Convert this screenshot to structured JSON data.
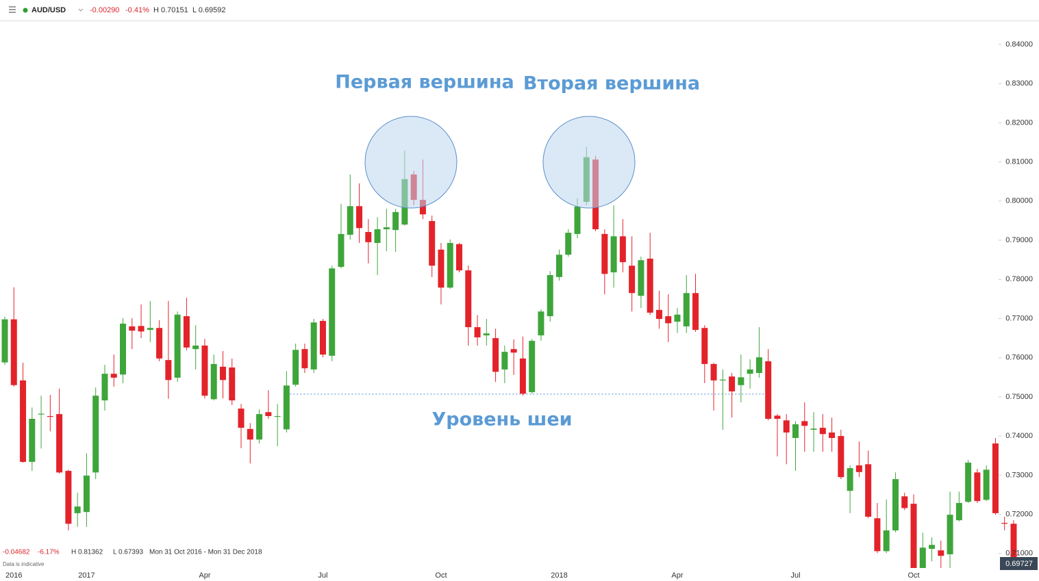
{
  "header": {
    "symbol": "AUD/USD",
    "change": "-0.00290",
    "change_pct": "-0.41%",
    "high": "H 0.70151",
    "low": "L 0.69592"
  },
  "chart_data": {
    "type": "candlestick",
    "categories": [
      null,
      "2016",
      null,
      null,
      null,
      null,
      null,
      null,
      null,
      "2017",
      null,
      null,
      null,
      null,
      null,
      null,
      null,
      null,
      null,
      null,
      null,
      null,
      "Apr",
      null,
      null,
      null,
      null,
      null,
      null,
      null,
      null,
      null,
      null,
      null,
      null,
      "Jul",
      null,
      null,
      null,
      null,
      null,
      null,
      null,
      null,
      null,
      null,
      null,
      null,
      "Oct",
      null,
      null,
      null,
      null,
      null,
      null,
      null,
      null,
      null,
      null,
      null,
      null,
      "2018",
      null,
      null,
      null,
      null,
      null,
      null,
      null,
      null,
      null,
      null,
      null,
      null,
      "Apr",
      null,
      null,
      null,
      null,
      null,
      null,
      null,
      null,
      null,
      null,
      null,
      null,
      "Jul",
      null,
      null,
      null,
      null,
      null,
      null,
      null,
      null,
      null,
      null,
      null,
      null,
      "Oct",
      null,
      null,
      null,
      null,
      null,
      null,
      null,
      null,
      null,
      null,
      null
    ],
    "open": [
      0.7588,
      0.7698,
      0.7542,
      0.7334,
      0.7455,
      0.7451,
      0.7456,
      0.7311,
      0.7203,
      0.7206,
      0.7307,
      0.7491,
      0.7559,
      0.7557,
      0.768,
      0.7681,
      0.7671,
      0.7676,
      0.7594,
      0.7549,
      0.7706,
      0.7622,
      0.7631,
      0.7494,
      0.7577,
      0.7575,
      0.747,
      0.7418,
      0.7391,
      0.7461,
      0.7449,
      0.7417,
      0.7531,
      0.7622,
      0.757,
      0.7694,
      0.7605,
      0.7832,
      0.7914,
      0.7987,
      0.7921,
      0.7893,
      0.7928,
      0.7926,
      0.794,
      0.8068,
      0.8003,
      0.7949,
      0.7876,
      0.7779,
      0.789,
      0.7823,
      0.7678,
      0.7657,
      0.765,
      0.757,
      0.7622,
      0.7598,
      0.7512,
      0.7657,
      0.7706,
      0.7806,
      0.7863,
      0.7916,
      0.7998,
      0.8106,
      0.7916,
      0.7818,
      0.791,
      0.7835,
      0.7758,
      0.7853,
      0.7722,
      0.7706,
      0.7692,
      0.768,
      0.7765,
      0.7676,
      0.7584,
      0.7542,
      0.7552,
      0.753,
      0.7559,
      0.7561,
      0.7591,
      0.7452,
      0.744,
      0.7395,
      0.7438,
      0.7416,
      0.7421,
      0.7409,
      0.74,
      0.726,
      0.7325,
      0.7328,
      0.719,
      0.7106,
      0.7159,
      0.7246,
      0.7227,
      0.7063,
      0.7112,
      0.7108,
      0.7098,
      0.7185,
      0.7232,
      0.7307,
      0.7237,
      0.7381,
      0.7178,
      0.7176
    ],
    "high": [
      0.7705,
      0.778,
      0.7587,
      0.7473,
      0.7503,
      0.7505,
      0.7521,
      0.7314,
      0.7255,
      0.7356,
      0.7524,
      0.7582,
      0.7608,
      0.7701,
      0.7701,
      0.7736,
      0.7745,
      0.7696,
      0.7745,
      0.7718,
      0.7753,
      0.7683,
      0.7648,
      0.7608,
      0.7617,
      0.7598,
      0.7482,
      0.7433,
      0.7468,
      0.7517,
      0.7482,
      0.7566,
      0.7636,
      0.7636,
      0.7699,
      0.7699,
      0.7835,
      0.7993,
      0.8068,
      0.8045,
      0.7954,
      0.7959,
      0.798,
      0.798,
      0.8129,
      0.8077,
      0.8106,
      0.7963,
      0.7893,
      0.7902,
      0.7893,
      0.7835,
      0.7709,
      0.7699,
      0.7674,
      0.7631,
      0.7647,
      0.7654,
      0.7648,
      0.7723,
      0.7821,
      0.7876,
      0.7928,
      0.8007,
      0.8138,
      0.8115,
      0.7928,
      0.7989,
      0.7954,
      0.791,
      0.7858,
      0.7919,
      0.7771,
      0.7762,
      0.7727,
      0.7811,
      0.7814,
      0.7683,
      0.7587,
      0.757,
      0.7561,
      0.7608,
      0.7596,
      0.7678,
      0.7622,
      0.7456,
      0.7456,
      0.7438,
      0.7486,
      0.7461,
      0.7456,
      0.7447,
      0.7416,
      0.7325,
      0.7386,
      0.7363,
      0.7229,
      0.7238,
      0.7307,
      0.7255,
      0.7251,
      0.7153,
      0.7141,
      0.7133,
      0.7258,
      0.7258,
      0.7339,
      0.7316,
      0.7325,
      0.7395,
      0.7194,
      0.7185
    ],
    "low": [
      0.7582,
      0.7526,
      0.7332,
      0.7311,
      0.7368,
      0.7412,
      0.7304,
      0.7159,
      0.7168,
      0.7168,
      0.729,
      0.7465,
      0.7526,
      0.7535,
      0.7622,
      0.765,
      0.764,
      0.7591,
      0.7495,
      0.7538,
      0.7619,
      0.757,
      0.7496,
      0.7491,
      0.7496,
      0.7479,
      0.7369,
      0.733,
      0.7381,
      0.7444,
      0.7374,
      0.7409,
      0.7526,
      0.7561,
      0.7561,
      0.7601,
      0.7591,
      0.7828,
      0.7902,
      0.7893,
      0.7841,
      0.7811,
      0.7872,
      0.787,
      0.7937,
      0.7989,
      0.7954,
      0.7806,
      0.7736,
      0.7776,
      0.7818,
      0.7631,
      0.7631,
      0.7631,
      0.7538,
      0.7535,
      0.7556,
      0.7503,
      0.7508,
      0.7643,
      0.7692,
      0.7797,
      0.7858,
      0.7905,
      0.7989,
      0.7923,
      0.7762,
      0.7779,
      0.7818,
      0.7718,
      0.7727,
      0.7709,
      0.7674,
      0.764,
      0.7663,
      0.7663,
      0.7666,
      0.7535,
      0.7465,
      0.7416,
      0.7447,
      0.7486,
      0.7521,
      0.7549,
      0.744,
      0.7348,
      0.7328,
      0.7311,
      0.736,
      0.736,
      0.736,
      0.736,
      0.729,
      0.7203,
      0.7295,
      0.719,
      0.7101,
      0.7101,
      0.7154,
      0.7211,
      0.7063,
      0.7063,
      0.708,
      0.7063,
      0.7063,
      0.7182,
      0.7229,
      0.7229,
      0.7234,
      0.7199,
      0.7159,
      0.7063
    ],
    "close": [
      0.7698,
      0.753,
      0.7334,
      0.7444,
      0.7457,
      0.7449,
      0.7307,
      0.7176,
      0.722,
      0.7299,
      0.7503,
      0.7559,
      0.7549,
      0.7687,
      0.7669,
      0.7667,
      0.7676,
      0.7598,
      0.7543,
      0.771,
      0.7626,
      0.7631,
      0.7503,
      0.7584,
      0.7543,
      0.7491,
      0.7421,
      0.7391,
      0.7456,
      0.7451,
      0.7451,
      0.7529,
      0.762,
      0.7573,
      0.769,
      0.7608,
      0.7828,
      0.7916,
      0.7987,
      0.7931,
      0.7895,
      0.7928,
      0.7933,
      0.7972,
      0.8056,
      0.8003,
      0.7966,
      0.7835,
      0.7779,
      0.7893,
      0.7823,
      0.7678,
      0.7652,
      0.7662,
      0.7564,
      0.7615,
      0.7613,
      0.7508,
      0.7643,
      0.7718,
      0.7811,
      0.7863,
      0.7919,
      0.7986,
      0.8112,
      0.7928,
      0.7814,
      0.791,
      0.7844,
      0.7765,
      0.7849,
      0.7715,
      0.7699,
      0.7688,
      0.771,
      0.7765,
      0.7671,
      0.7584,
      0.7542,
      0.7544,
      0.7514,
      0.755,
      0.757,
      0.7601,
      0.7444,
      0.7444,
      0.7409,
      0.743,
      0.7426,
      0.7419,
      0.7405,
      0.7395,
      0.7295,
      0.7318,
      0.7308,
      0.7194,
      0.7106,
      0.7159,
      0.729,
      0.7216,
      0.7063,
      0.7115,
      0.7122,
      0.7094,
      0.7199,
      0.7229,
      0.7332,
      0.7234,
      0.7314,
      0.7203,
      0.7176,
      0.7063
    ],
    "up_color": "#3ea53b",
    "down_color": "#e3232a",
    "ylim": [
      0.7063,
      0.8461
    ],
    "yticks": [
      {
        "value": 0.84,
        "label": "0.84000"
      },
      {
        "value": 0.83,
        "label": "0.83000"
      },
      {
        "value": 0.82,
        "label": "0.82000"
      },
      {
        "value": 0.81,
        "label": "0.81000"
      },
      {
        "value": 0.8,
        "label": "0.80000"
      },
      {
        "value": 0.79,
        "label": "0.79000"
      },
      {
        "value": 0.78,
        "label": "0.78000"
      },
      {
        "value": 0.77,
        "label": "0.77000"
      },
      {
        "value": 0.76,
        "label": "0.76000"
      },
      {
        "value": 0.75,
        "label": "0.75000"
      },
      {
        "value": 0.74,
        "label": "0.74000"
      },
      {
        "value": 0.73,
        "label": "0.73000"
      },
      {
        "value": 0.72,
        "label": "0.72000"
      },
      {
        "value": 0.71,
        "label": "0.71000"
      }
    ],
    "grid": false,
    "annotations": [
      "Первая вершина",
      "Вторая вершина",
      "Уровень шеи"
    ],
    "neckline": 0.7507
  },
  "footer": {
    "change": "-0.04682",
    "change_pct": "-6.17%",
    "high": "H 0.81362",
    "low": "L 0.67393",
    "range": "Mon 31 Oct 2016 - Mon 31 Dec 2018",
    "note": "Data is indicative"
  },
  "last_price": "0.69727"
}
